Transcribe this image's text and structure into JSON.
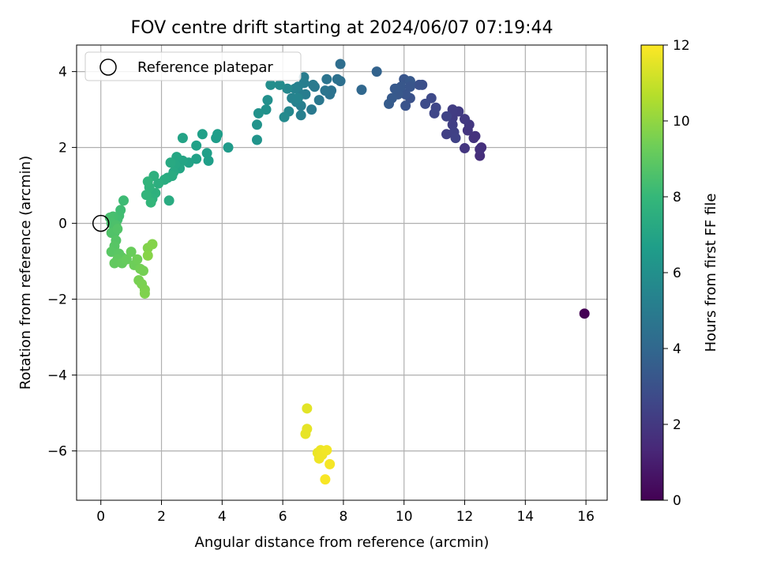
{
  "chart_data": {
    "type": "scatter",
    "title": "FOV centre drift starting at 2024/06/07 07:19:44",
    "xlabel": "Angular distance from reference (arcmin)",
    "ylabel": "Rotation from reference (arcmin)",
    "xlim": [
      -0.8,
      16.7
    ],
    "ylim": [
      -7.3,
      4.7
    ],
    "xticks": [
      0,
      2,
      4,
      6,
      8,
      10,
      12,
      14,
      16
    ],
    "yticks": [
      -6,
      -4,
      -2,
      0,
      2,
      4
    ],
    "grid": true,
    "legend": {
      "position": "top-left",
      "entries": [
        "Reference platepar"
      ]
    },
    "reference_point": {
      "x": 0,
      "y": 0,
      "label": "Reference platepar"
    },
    "colorbar": {
      "label": "Hours from first FF file",
      "range": [
        0,
        12
      ],
      "ticks": [
        0,
        2,
        4,
        6,
        8,
        10,
        12
      ],
      "colormap": "viridis",
      "stops": [
        "#440154",
        "#482878",
        "#3e4989",
        "#31688e",
        "#26828e",
        "#1f9e89",
        "#35b779",
        "#6ece58",
        "#b5de2b",
        "#fde725"
      ]
    },
    "series": [
      {
        "points": [
          [
            15.95,
            -2.38,
            0.0
          ],
          [
            12.5,
            1.78,
            1.6
          ],
          [
            12.55,
            2.0,
            1.65
          ],
          [
            12.5,
            1.95,
            1.7
          ],
          [
            12.3,
            2.25,
            1.8
          ],
          [
            12.1,
            2.45,
            1.85
          ],
          [
            12.35,
            2.3,
            1.75
          ],
          [
            12.0,
            1.98,
            1.9
          ],
          [
            12.15,
            2.6,
            1.95
          ],
          [
            12.0,
            2.75,
            2.0
          ],
          [
            11.8,
            2.95,
            2.1
          ],
          [
            11.6,
            2.78,
            2.15
          ],
          [
            11.6,
            3.0,
            2.2
          ],
          [
            11.6,
            2.6,
            2.25
          ],
          [
            11.4,
            2.35,
            2.3
          ],
          [
            11.65,
            2.4,
            2.35
          ],
          [
            11.7,
            2.25,
            2.4
          ],
          [
            11.4,
            2.82,
            2.45
          ],
          [
            11.0,
            2.9,
            2.55
          ],
          [
            11.05,
            3.05,
            2.6
          ],
          [
            10.9,
            3.3,
            2.7
          ],
          [
            10.7,
            3.15,
            2.8
          ],
          [
            10.6,
            3.65,
            2.9
          ],
          [
            10.5,
            3.65,
            2.95
          ],
          [
            10.2,
            3.3,
            3.0
          ],
          [
            10.05,
            3.1,
            3.1
          ],
          [
            10.05,
            3.4,
            3.15
          ],
          [
            10.0,
            3.8,
            3.2
          ],
          [
            9.9,
            3.6,
            3.25
          ],
          [
            9.8,
            3.4,
            3.3
          ],
          [
            9.7,
            3.55,
            3.35
          ],
          [
            9.6,
            3.3,
            3.4
          ],
          [
            9.5,
            3.15,
            3.45
          ],
          [
            10.2,
            3.75,
            3.3
          ],
          [
            10.2,
            3.6,
            3.2
          ],
          [
            9.1,
            4.0,
            3.8
          ],
          [
            8.6,
            3.52,
            4.0
          ],
          [
            7.9,
            4.2,
            4.3
          ],
          [
            7.9,
            3.75,
            4.35
          ],
          [
            7.8,
            3.8,
            4.45
          ],
          [
            7.6,
            3.5,
            4.5
          ],
          [
            7.55,
            3.4,
            4.55
          ],
          [
            7.45,
            3.8,
            4.6
          ],
          [
            7.4,
            3.5,
            4.65
          ],
          [
            7.2,
            3.25,
            4.75
          ],
          [
            7.05,
            3.6,
            4.8
          ],
          [
            6.95,
            3.0,
            4.85
          ],
          [
            7.0,
            3.65,
            4.9
          ],
          [
            6.7,
            3.85,
            5.0
          ],
          [
            6.75,
            3.4,
            5.05
          ],
          [
            6.6,
            3.4,
            5.1
          ],
          [
            6.7,
            3.7,
            5.12
          ],
          [
            6.6,
            3.1,
            5.15
          ],
          [
            6.6,
            2.85,
            5.2
          ],
          [
            6.5,
            3.6,
            5.25
          ],
          [
            6.45,
            3.2,
            5.3
          ],
          [
            6.4,
            3.55,
            5.35
          ],
          [
            6.3,
            3.3,
            5.4
          ],
          [
            6.5,
            3.3,
            5.45
          ],
          [
            6.2,
            2.95,
            5.55
          ],
          [
            6.15,
            3.55,
            5.6
          ],
          [
            6.05,
            2.8,
            5.7
          ],
          [
            5.9,
            3.65,
            5.8
          ],
          [
            5.6,
            3.65,
            5.9
          ],
          [
            5.5,
            3.25,
            6.0
          ],
          [
            5.45,
            3.0,
            6.05
          ],
          [
            5.2,
            2.9,
            6.1
          ],
          [
            5.15,
            2.6,
            6.15
          ],
          [
            5.15,
            2.2,
            6.2
          ],
          [
            4.2,
            2.0,
            6.5
          ],
          [
            3.8,
            2.25,
            6.6
          ],
          [
            3.85,
            2.35,
            6.65
          ],
          [
            3.55,
            1.65,
            6.7
          ],
          [
            3.5,
            1.85,
            6.72
          ],
          [
            3.35,
            2.35,
            6.75
          ],
          [
            3.15,
            2.05,
            6.8
          ],
          [
            3.15,
            1.7,
            6.85
          ],
          [
            2.9,
            1.6,
            6.9
          ],
          [
            2.7,
            2.25,
            6.95
          ],
          [
            2.7,
            1.65,
            7.0
          ],
          [
            2.6,
            1.45,
            7.05
          ],
          [
            2.5,
            1.75,
            7.1
          ],
          [
            2.45,
            1.55,
            7.15
          ],
          [
            2.4,
            1.35,
            7.2
          ],
          [
            2.3,
            1.6,
            7.25
          ],
          [
            2.2,
            1.2,
            7.3
          ],
          [
            2.35,
            1.25,
            7.32
          ],
          [
            2.25,
            0.6,
            7.35
          ],
          [
            2.1,
            1.15,
            7.4
          ],
          [
            1.9,
            1.05,
            7.5
          ],
          [
            1.75,
            1.25,
            7.6
          ],
          [
            1.8,
            0.8,
            7.65
          ],
          [
            1.7,
            0.65,
            7.7
          ],
          [
            1.6,
            0.95,
            7.75
          ],
          [
            1.55,
            1.1,
            7.8
          ],
          [
            1.5,
            0.75,
            7.85
          ],
          [
            1.65,
            0.55,
            7.9
          ],
          [
            0.75,
            0.6,
            8.2
          ],
          [
            0.65,
            0.35,
            8.25
          ],
          [
            0.6,
            0.2,
            8.3
          ],
          [
            0.55,
            0.1,
            8.35
          ],
          [
            0.4,
            0.18,
            8.4
          ],
          [
            0.3,
            0.15,
            8.45
          ],
          [
            0.35,
            0.0,
            8.5
          ],
          [
            0.5,
            -0.05,
            8.55
          ],
          [
            0.45,
            -0.25,
            8.6
          ],
          [
            0.35,
            -0.25,
            8.65
          ],
          [
            0.55,
            -0.15,
            8.7
          ],
          [
            0.5,
            -0.45,
            8.75
          ],
          [
            0.45,
            -0.6,
            8.8
          ],
          [
            0.35,
            -0.75,
            8.85
          ],
          [
            0.6,
            -0.8,
            8.9
          ],
          [
            0.7,
            -0.9,
            8.95
          ],
          [
            0.55,
            -0.95,
            9.0
          ],
          [
            0.45,
            -1.05,
            9.05
          ],
          [
            0.7,
            -1.05,
            9.1
          ],
          [
            0.85,
            -0.95,
            9.15
          ],
          [
            1.0,
            -0.75,
            9.2
          ],
          [
            1.1,
            -1.1,
            9.3
          ],
          [
            1.2,
            -0.95,
            9.35
          ],
          [
            1.3,
            -1.2,
            9.4
          ],
          [
            1.4,
            -1.25,
            9.45
          ],
          [
            1.25,
            -1.5,
            9.5
          ],
          [
            1.35,
            -1.6,
            9.55
          ],
          [
            1.45,
            -1.75,
            9.6
          ],
          [
            1.45,
            -1.85,
            9.65
          ],
          [
            1.55,
            -0.65,
            9.7
          ],
          [
            1.7,
            -0.55,
            9.75
          ],
          [
            1.55,
            -0.85,
            9.8
          ],
          [
            6.8,
            -4.88,
            11.5
          ],
          [
            6.8,
            -5.42,
            11.55
          ],
          [
            6.75,
            -5.55,
            11.6
          ],
          [
            7.15,
            -6.05,
            11.65
          ],
          [
            7.25,
            -5.98,
            11.7
          ],
          [
            7.2,
            -6.2,
            11.72
          ],
          [
            7.3,
            -6.1,
            11.75
          ],
          [
            7.45,
            -5.98,
            11.8
          ],
          [
            7.55,
            -6.35,
            11.85
          ],
          [
            7.4,
            -6.75,
            11.9
          ]
        ]
      }
    ]
  }
}
